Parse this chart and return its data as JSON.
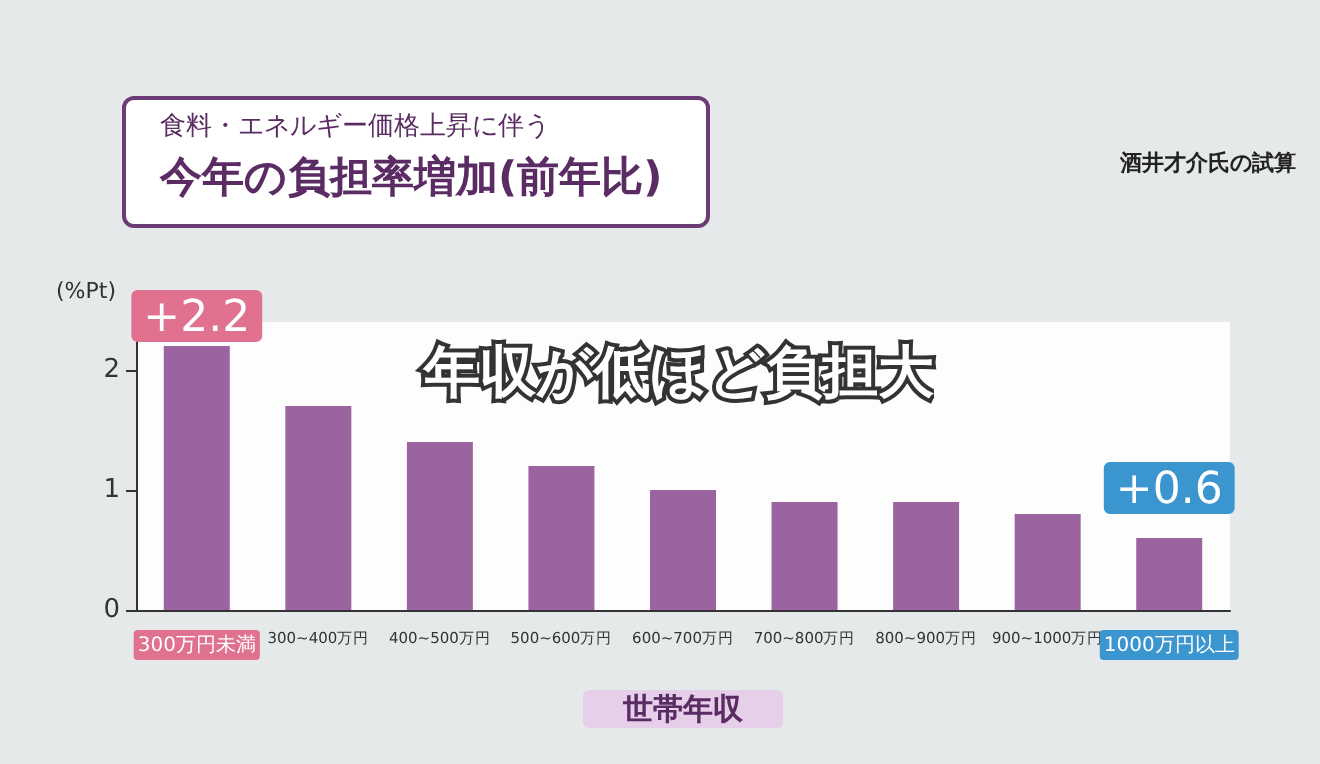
{
  "chart_data": {
    "type": "bar",
    "subtitle": "食料・エネルギー価格上昇に伴う",
    "title": "今年の負担率増加(前年比)",
    "ylabel": "(%Pt)",
    "xlabel": "世帯年収",
    "categories": [
      "300万円未満",
      "300~400万円",
      "400~500万円",
      "500~600万円",
      "600~700万円",
      "700~800万円",
      "800~900万円",
      "900~1000万円",
      "1000万円以上"
    ],
    "values": [
      2.2,
      1.7,
      1.4,
      1.2,
      1.0,
      0.9,
      0.9,
      0.8,
      0.6
    ],
    "value_labels": [
      "+2.2",
      null,
      null,
      null,
      null,
      null,
      null,
      null,
      "+0.6"
    ],
    "color": "#9b64a0",
    "ylim": [
      0,
      2.4
    ],
    "yticks": [
      0,
      1,
      2
    ],
    "grid": false,
    "annotations": [
      "年収が低ほど負担大",
      "酒井才介氏の試算"
    ]
  }
}
